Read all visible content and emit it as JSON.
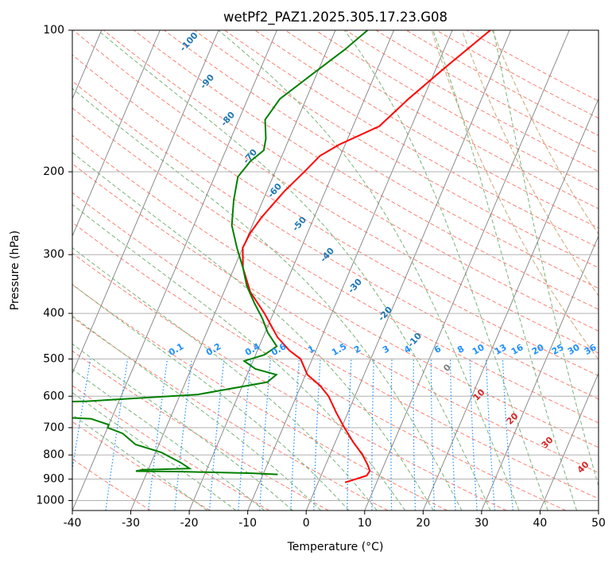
{
  "chart_data": {
    "type": "line",
    "title": "wetPf2_PAZ1.2025.305.17.23.G08",
    "xlabel": "Temperature (°C)",
    "ylabel": "Pressure (hPa)",
    "xlim": [
      -40,
      50
    ],
    "ylim": [
      1050,
      100
    ],
    "y_scale": "log",
    "skew": 35,
    "grid": true,
    "x_ticks": [
      "-40",
      "-30",
      "-20",
      "-10",
      "0",
      "10",
      "20",
      "30",
      "40",
      "50"
    ],
    "y_ticks": [
      "100",
      "200",
      "300",
      "400",
      "500",
      "600",
      "700",
      "800",
      "900",
      "1000"
    ],
    "series": [
      {
        "color": "#ff0000",
        "points": [
          [
            -3.5,
            100
          ],
          [
            -8.5,
            120
          ],
          [
            -12.5,
            140
          ],
          [
            -15.5,
            160
          ],
          [
            -21,
            175
          ],
          [
            -23.5,
            185
          ],
          [
            -25,
            200
          ],
          [
            -27,
            220
          ],
          [
            -29,
            250
          ],
          [
            -29.8,
            270
          ],
          [
            -30,
            290
          ],
          [
            -28.5,
            320
          ],
          [
            -25.5,
            360
          ],
          [
            -21.5,
            400
          ],
          [
            -17.5,
            450
          ],
          [
            -14.5,
            480
          ],
          [
            -12,
            500
          ],
          [
            -9.7,
            540
          ],
          [
            -6.7,
            570
          ],
          [
            -4.5,
            600
          ],
          [
            -2,
            650
          ],
          [
            0.5,
            700
          ],
          [
            3,
            750
          ],
          [
            5.6,
            800
          ],
          [
            7.2,
            840
          ],
          [
            8,
            865
          ],
          [
            7.8,
            885
          ],
          [
            6.2,
            900
          ],
          [
            4.6,
            915
          ]
        ]
      },
      {
        "color": "#008000",
        "points": [
          [
            -24.5,
            100
          ],
          [
            -27,
            110
          ],
          [
            -31,
            125
          ],
          [
            -34.5,
            140
          ],
          [
            -35.5,
            155
          ],
          [
            -34,
            170
          ],
          [
            -33.5,
            180
          ],
          [
            -35,
            190
          ],
          [
            -36,
            205
          ],
          [
            -35,
            230
          ],
          [
            -33.5,
            260
          ],
          [
            -31,
            290
          ],
          [
            -28.5,
            320
          ],
          [
            -26.5,
            350
          ],
          [
            -24,
            380
          ],
          [
            -21.5,
            410
          ],
          [
            -19.5,
            440
          ],
          [
            -17,
            470
          ],
          [
            -18.5,
            490
          ],
          [
            -21.5,
            505
          ],
          [
            -19,
            525
          ],
          [
            -15,
            540
          ],
          [
            -16,
            560
          ],
          [
            -27,
            595
          ],
          [
            -45.5,
            615
          ],
          [
            -70.5,
            625
          ],
          [
            -69.5,
            640
          ],
          [
            -55,
            660
          ],
          [
            -43.5,
            670
          ],
          [
            -40,
            690
          ],
          [
            -40,
            700
          ],
          [
            -37,
            720
          ],
          [
            -34,
            760
          ],
          [
            -29,
            790
          ],
          [
            -27,
            810
          ],
          [
            -25,
            830
          ],
          [
            -23,
            855
          ],
          [
            -31,
            860
          ],
          [
            -32,
            866
          ],
          [
            -24,
            868
          ],
          [
            -12,
            875
          ],
          [
            -7.5,
            880
          ]
        ]
      }
    ],
    "isotherm_labels": [
      "-100",
      "-90",
      "-80",
      "-70",
      "-60",
      "-50",
      "-40",
      "-30",
      "-20",
      "-10"
    ],
    "isotherm_label_color": "#1f77b4",
    "mixing_ratio_labels": [
      "0.1",
      "0.2",
      "0.4",
      "0.6",
      "1",
      "1.5",
      "2",
      "3",
      "4",
      "6",
      "8",
      "10",
      "13",
      "16",
      "20",
      "25",
      "30",
      "36"
    ],
    "mixing_ratio_color": "#1e90ff",
    "moist_adiabat_labels": [
      "0",
      "10",
      "20",
      "30",
      "40"
    ],
    "colors": {
      "temperature": "#ff0000",
      "dewpoint": "#008000",
      "dry_adiabat": "#fa8072",
      "moist_adiabat": "#78b478",
      "isotherm": "#808080",
      "mixing_ratio": "#1e90ff",
      "wet_bulb_line": "#d2b48c",
      "zero_label": "#808080",
      "moist_label": "#d62728"
    }
  }
}
